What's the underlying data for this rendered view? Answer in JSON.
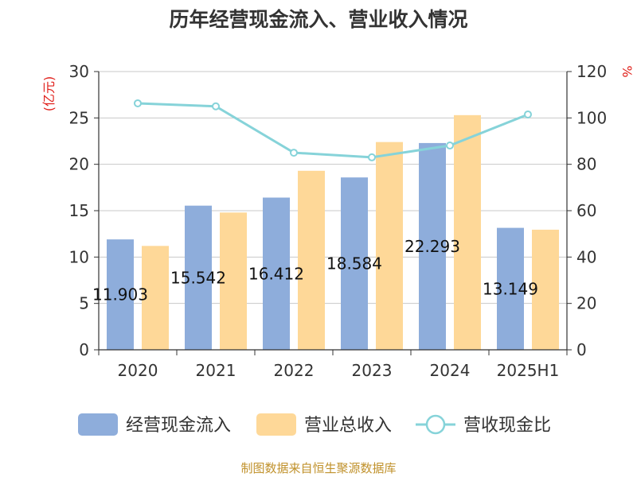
{
  "chart_data": {
    "type": "bar",
    "title": "历年经营现金流入、营业收入情况",
    "categories": [
      "2020",
      "2021",
      "2022",
      "2023",
      "2024",
      "2025H1"
    ],
    "series": [
      {
        "name": "经营现金流入",
        "kind": "bar",
        "axis": "left",
        "color": "#8eaddb",
        "values": [
          11.903,
          15.542,
          16.412,
          18.584,
          22.293,
          13.149
        ],
        "labels": [
          "11.903",
          "15.542",
          "16.412",
          "18.584",
          "22.293",
          "13.149"
        ]
      },
      {
        "name": "营业总收入",
        "kind": "bar",
        "axis": "left",
        "color": "#fed898",
        "values": [
          11.2,
          14.8,
          19.3,
          22.4,
          25.3,
          12.95
        ]
      },
      {
        "name": "营收现金比",
        "kind": "line",
        "axis": "right",
        "color": "#86d3d9",
        "values": [
          106.3,
          105.0,
          85.0,
          83.0,
          88.1,
          101.5
        ]
      }
    ],
    "y_left": {
      "unit": "(亿元)",
      "min": 0,
      "max": 30,
      "ticks": [
        0,
        5,
        10,
        15,
        20,
        25,
        30
      ]
    },
    "y_right": {
      "unit": "%",
      "min": 0,
      "max": 120,
      "ticks": [
        0,
        20,
        40,
        60,
        80,
        100,
        120
      ]
    },
    "grid": true,
    "legend_position": "bottom"
  },
  "footer": {
    "source": "制图数据来自恒生聚源数据库"
  }
}
